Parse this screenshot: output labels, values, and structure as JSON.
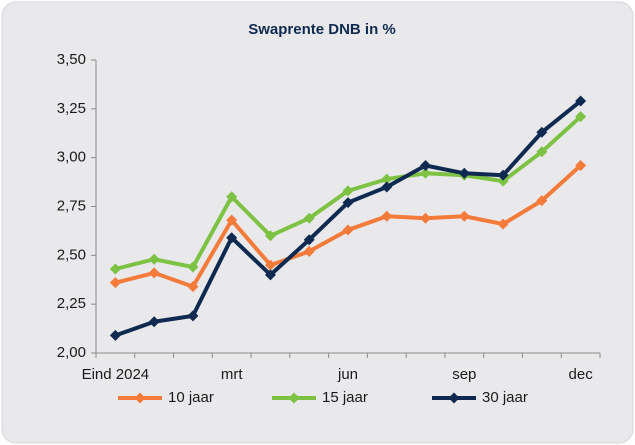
{
  "chart_data": {
    "type": "line",
    "title": "Swaprente DNB in %",
    "categories": [
      "Eind 2024",
      null,
      null,
      "mrt",
      null,
      null,
      "jun",
      null,
      null,
      "sep",
      null,
      null,
      "dec"
    ],
    "series": [
      {
        "name": "10 jaar",
        "color": "#f47b3a",
        "values": [
          2.36,
          2.41,
          2.34,
          2.68,
          2.45,
          2.52,
          2.63,
          2.7,
          2.69,
          2.7,
          2.66,
          2.78,
          2.96
        ]
      },
      {
        "name": "15 jaar",
        "color": "#7dc242",
        "values": [
          2.43,
          2.48,
          2.44,
          2.8,
          2.6,
          2.69,
          2.83,
          2.89,
          2.92,
          2.91,
          2.88,
          3.03,
          3.21
        ]
      },
      {
        "name": "30 jaar",
        "color": "#0f2a50",
        "values": [
          2.09,
          2.16,
          2.19,
          2.59,
          2.4,
          2.58,
          2.77,
          2.85,
          2.96,
          2.92,
          2.91,
          3.13,
          3.29
        ]
      }
    ],
    "ylim": [
      2.0,
      3.5
    ],
    "yticks": [
      {
        "value": 2.0,
        "label": "2,00"
      },
      {
        "value": 2.25,
        "label": "2,25"
      },
      {
        "value": 2.5,
        "label": "2,50"
      },
      {
        "value": 2.75,
        "label": "2,75"
      },
      {
        "value": 3.0,
        "label": "3,00"
      },
      {
        "value": 3.25,
        "label": "3,25"
      },
      {
        "value": 3.5,
        "label": "3,50"
      }
    ],
    "grid": false,
    "legend": "bottom"
  }
}
